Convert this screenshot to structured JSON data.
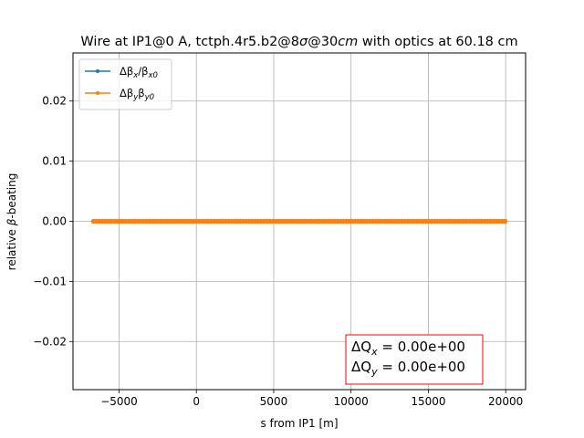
{
  "chart_data": {
    "type": "line",
    "title": "Wire at IP1@0 A, tctph.4r5.b2@8σ@30cm with optics at 60.18 cm",
    "title_parts": {
      "pre": "Wire at IP1@0 A, tctph.4r5.b2@8",
      "sigma": "σ",
      "mid": "@30",
      "cm_italic": "cm",
      "post": " with optics at 60.18 cm"
    },
    "xlabel": "s from IP1 [m]",
    "ylabel_parts": {
      "pre": "relative ",
      "beta": "β",
      "post": "-beating"
    },
    "xlim": [
      -7979,
      21289
    ],
    "ylim": [
      -0.028,
      0.028
    ],
    "xticks": [
      -5000,
      0,
      5000,
      10000,
      15000,
      20000
    ],
    "xtick_labels": [
      "−5000",
      "0",
      "5000",
      "10000",
      "15000",
      "20000"
    ],
    "yticks": [
      -0.02,
      -0.01,
      0.0,
      0.01,
      0.02
    ],
    "ytick_labels": [
      "−0.02",
      "−0.01",
      "0.00",
      "0.01",
      "0.02"
    ],
    "grid": true,
    "legend_position": "upper-left",
    "series": [
      {
        "name": "Δβx/βx0",
        "legend": {
          "delta": "Δβ",
          "sub1": "x",
          "slash": "/β",
          "sub2": "x0"
        },
        "color": "#1f77b4",
        "marker": "point",
        "x_range": [
          -6647,
          19957
        ],
        "y_constant": 0.0
      },
      {
        "name": "Δβyβy0",
        "legend": {
          "delta": "Δβ",
          "sub1": "y",
          "slash": "β",
          "sub2": "y0"
        },
        "color": "#ff7f0e",
        "marker": "point",
        "x_range": [
          -6647,
          19957
        ],
        "y_constant": 0.0
      }
    ],
    "annotation": {
      "line1": {
        "delta": "ΔQ",
        "sub": "x",
        "value": " = 0.00e+00"
      },
      "line2": {
        "delta": "ΔQ",
        "sub": "y",
        "value": " = 0.00e+00"
      },
      "border_color": "#ff0000",
      "position": "lower-right"
    }
  }
}
